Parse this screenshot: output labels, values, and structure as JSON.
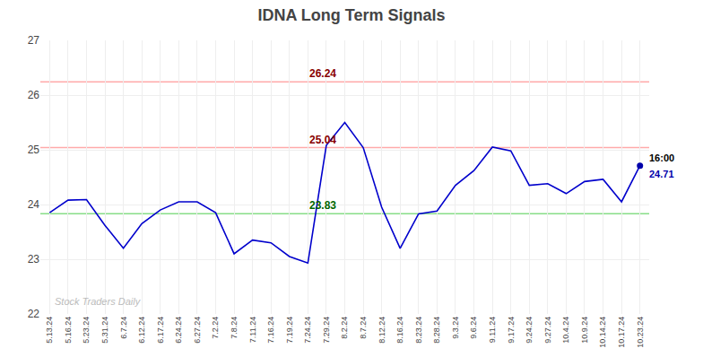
{
  "chart_data": {
    "type": "line",
    "title": "IDNA Long Term Signals",
    "categories": [
      "5.13.24",
      "5.16.24",
      "5.23.24",
      "5.31.24",
      "6.7.24",
      "6.12.24",
      "6.17.24",
      "6.24.24",
      "6.27.24",
      "7.2.24",
      "7.8.24",
      "7.11.24",
      "7.16.24",
      "7.19.24",
      "7.24.24",
      "7.29.24",
      "8.2.24",
      "8.7.24",
      "8.12.24",
      "8.16.24",
      "8.23.24",
      "8.28.24",
      "9.3.24",
      "9.6.24",
      "9.11.24",
      "9.17.24",
      "9.24.24",
      "9.27.24",
      "10.4.24",
      "10.9.24",
      "10.14.24",
      "10.17.24",
      "10.23.24"
    ],
    "values": [
      23.85,
      24.08,
      24.09,
      23.62,
      23.2,
      23.65,
      23.9,
      24.05,
      24.05,
      23.85,
      23.1,
      23.35,
      23.3,
      23.05,
      22.93,
      25.08,
      25.5,
      25.04,
      23.95,
      23.2,
      23.83,
      23.88,
      24.35,
      24.62,
      25.05,
      24.98,
      24.35,
      24.38,
      24.2,
      24.42,
      24.46,
      24.05,
      24.71
    ],
    "color": "#0000cc",
    "ylim": [
      22,
      27
    ],
    "yticks": [
      22,
      23,
      24,
      25,
      26,
      27
    ],
    "grid": true,
    "hlines": [
      {
        "value": 26.24,
        "label": "26.24",
        "color": "#ffaaaa",
        "label_color": "#880000"
      },
      {
        "value": 25.04,
        "label": "25.04",
        "color": "#ffaaaa",
        "label_color": "#880000"
      },
      {
        "value": 23.83,
        "label": "23.83",
        "color": "#88dd88",
        "label_color": "#006600"
      }
    ],
    "endpoint_labels": [
      "16:00",
      "24.71"
    ],
    "endpoint_label_colors": [
      "#000000",
      "#0000aa"
    ],
    "endpoint_color": "#0000aa",
    "watermark": "Stock Traders Daily",
    "watermark_color": "#bbbbbb"
  }
}
